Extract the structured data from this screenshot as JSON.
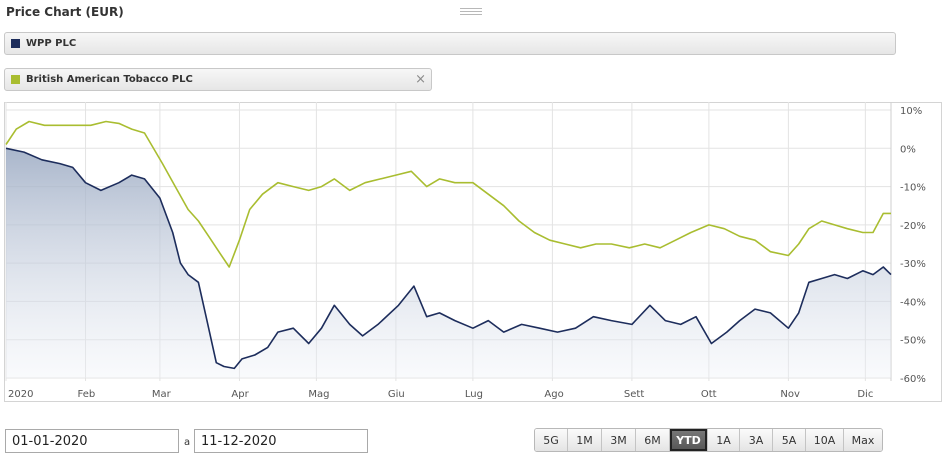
{
  "header": {
    "title": "Price Chart (EUR)"
  },
  "legend": {
    "items": [
      {
        "label": "WPP PLC",
        "color": "#1d2d5c",
        "removable": false
      },
      {
        "label": "British American Tobacco PLC",
        "color": "#a9bd30",
        "removable": true
      }
    ],
    "close_glyph": "×"
  },
  "date_range": {
    "from": "01-01-2020",
    "separator": "a",
    "to": "11-12-2020"
  },
  "range_buttons": [
    "5G",
    "1M",
    "3M",
    "6M",
    "YTD",
    "1A",
    "3A",
    "5A",
    "10A",
    "Max"
  ],
  "range_selected": "YTD",
  "chart_data": {
    "type": "line",
    "x_axis_labels": [
      "2020",
      "Feb",
      "Mar",
      "Apr",
      "Mag",
      "Giu",
      "Lug",
      "Ago",
      "Sett",
      "Ott",
      "Nov",
      "Dic"
    ],
    "y_axis_labels": [
      "10%",
      "0%",
      "-10%",
      "-20%",
      "-30%",
      "-40%",
      "-50%",
      "-60%"
    ],
    "ylim": [
      -60,
      10
    ],
    "grid": true,
    "series": [
      {
        "name": "WPP PLC",
        "color": "#1d2d5c",
        "fill": "area",
        "points": [
          [
            "2020-01-01",
            0
          ],
          [
            "2020-01-08",
            -1
          ],
          [
            "2020-01-15",
            -3
          ],
          [
            "2020-01-22",
            -4
          ],
          [
            "2020-01-27",
            -5
          ],
          [
            "2020-02-01",
            -9
          ],
          [
            "2020-02-07",
            -11
          ],
          [
            "2020-02-14",
            -9
          ],
          [
            "2020-02-19",
            -7
          ],
          [
            "2020-02-24",
            -8
          ],
          [
            "2020-03-01",
            -13
          ],
          [
            "2020-03-06",
            -22
          ],
          [
            "2020-03-09",
            -30
          ],
          [
            "2020-03-12",
            -33
          ],
          [
            "2020-03-16",
            -35
          ],
          [
            "2020-03-19",
            -44
          ],
          [
            "2020-03-23",
            -56
          ],
          [
            "2020-03-26",
            -57
          ],
          [
            "2020-03-30",
            -57.5
          ],
          [
            "2020-04-02",
            -55
          ],
          [
            "2020-04-07",
            -54
          ],
          [
            "2020-04-12",
            -52
          ],
          [
            "2020-04-16",
            -48
          ],
          [
            "2020-04-22",
            -47
          ],
          [
            "2020-04-28",
            -51
          ],
          [
            "2020-05-03",
            -47
          ],
          [
            "2020-05-08",
            -41
          ],
          [
            "2020-05-14",
            -46
          ],
          [
            "2020-05-19",
            -49
          ],
          [
            "2020-05-25",
            -46
          ],
          [
            "2020-06-02",
            -41
          ],
          [
            "2020-06-08",
            -36
          ],
          [
            "2020-06-13",
            -44
          ],
          [
            "2020-06-18",
            -43
          ],
          [
            "2020-06-24",
            -45
          ],
          [
            "2020-07-01",
            -47
          ],
          [
            "2020-07-07",
            -45
          ],
          [
            "2020-07-13",
            -48
          ],
          [
            "2020-07-20",
            -46
          ],
          [
            "2020-07-27",
            -47
          ],
          [
            "2020-08-03",
            -48
          ],
          [
            "2020-08-10",
            -47
          ],
          [
            "2020-08-17",
            -44
          ],
          [
            "2020-08-24",
            -45
          ],
          [
            "2020-09-01",
            -46
          ],
          [
            "2020-09-08",
            -41
          ],
          [
            "2020-09-14",
            -45
          ],
          [
            "2020-09-20",
            -46
          ],
          [
            "2020-09-26",
            -44
          ],
          [
            "2020-10-02",
            -51
          ],
          [
            "2020-10-08",
            -48
          ],
          [
            "2020-10-13",
            -45
          ],
          [
            "2020-10-19",
            -42
          ],
          [
            "2020-10-25",
            -43
          ],
          [
            "2020-11-01",
            -47
          ],
          [
            "2020-11-05",
            -43
          ],
          [
            "2020-11-09",
            -35
          ],
          [
            "2020-11-14",
            -34
          ],
          [
            "2020-11-19",
            -33
          ],
          [
            "2020-11-24",
            -34
          ],
          [
            "2020-11-30",
            -32
          ],
          [
            "2020-12-04",
            -33
          ],
          [
            "2020-12-08",
            -31
          ],
          [
            "2020-12-11",
            -33
          ]
        ]
      },
      {
        "name": "British American Tobacco PLC",
        "color": "#a9bd30",
        "fill": "none",
        "points": [
          [
            "2020-01-01",
            1
          ],
          [
            "2020-01-05",
            5
          ],
          [
            "2020-01-10",
            7
          ],
          [
            "2020-01-16",
            6
          ],
          [
            "2020-01-22",
            6
          ],
          [
            "2020-01-28",
            6
          ],
          [
            "2020-02-03",
            6
          ],
          [
            "2020-02-09",
            7
          ],
          [
            "2020-02-14",
            6.5
          ],
          [
            "2020-02-19",
            5
          ],
          [
            "2020-02-24",
            4
          ],
          [
            "2020-03-02",
            -4
          ],
          [
            "2020-03-07",
            -10
          ],
          [
            "2020-03-12",
            -16
          ],
          [
            "2020-03-16",
            -19
          ],
          [
            "2020-03-20",
            -23
          ],
          [
            "2020-03-24",
            -27
          ],
          [
            "2020-03-28",
            -31
          ],
          [
            "2020-04-01",
            -24
          ],
          [
            "2020-04-05",
            -16
          ],
          [
            "2020-04-10",
            -12
          ],
          [
            "2020-04-16",
            -9
          ],
          [
            "2020-04-22",
            -10
          ],
          [
            "2020-04-28",
            -11
          ],
          [
            "2020-05-03",
            -10
          ],
          [
            "2020-05-08",
            -8
          ],
          [
            "2020-05-14",
            -11
          ],
          [
            "2020-05-20",
            -9
          ],
          [
            "2020-05-26",
            -8
          ],
          [
            "2020-06-01",
            -7
          ],
          [
            "2020-06-07",
            -6
          ],
          [
            "2020-06-13",
            -10
          ],
          [
            "2020-06-18",
            -8
          ],
          [
            "2020-06-24",
            -9
          ],
          [
            "2020-07-01",
            -9
          ],
          [
            "2020-07-07",
            -12
          ],
          [
            "2020-07-13",
            -15
          ],
          [
            "2020-07-19",
            -19
          ],
          [
            "2020-07-25",
            -22
          ],
          [
            "2020-07-31",
            -24
          ],
          [
            "2020-08-06",
            -25
          ],
          [
            "2020-08-12",
            -26
          ],
          [
            "2020-08-18",
            -25
          ],
          [
            "2020-08-24",
            -25
          ],
          [
            "2020-08-31",
            -26
          ],
          [
            "2020-09-06",
            -25
          ],
          [
            "2020-09-12",
            -26
          ],
          [
            "2020-09-18",
            -24
          ],
          [
            "2020-09-24",
            -22
          ],
          [
            "2020-10-01",
            -20
          ],
          [
            "2020-10-07",
            -21
          ],
          [
            "2020-10-13",
            -23
          ],
          [
            "2020-10-19",
            -24
          ],
          [
            "2020-10-25",
            -27
          ],
          [
            "2020-11-01",
            -28
          ],
          [
            "2020-11-05",
            -25
          ],
          [
            "2020-11-09",
            -21
          ],
          [
            "2020-11-14",
            -19
          ],
          [
            "2020-11-19",
            -20
          ],
          [
            "2020-11-24",
            -21
          ],
          [
            "2020-11-30",
            -22
          ],
          [
            "2020-12-04",
            -22
          ],
          [
            "2020-12-08",
            -17
          ],
          [
            "2020-12-11",
            -17
          ]
        ]
      }
    ]
  }
}
